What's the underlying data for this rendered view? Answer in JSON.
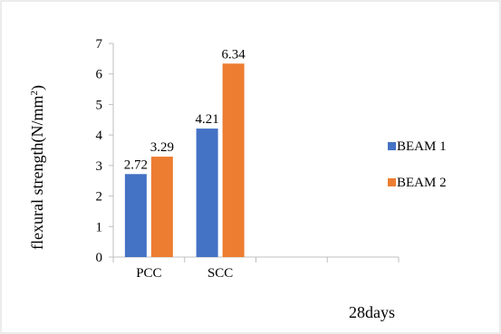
{
  "chart_data": {
    "type": "bar",
    "categories": [
      "PCC",
      "SCC",
      "",
      ""
    ],
    "series": [
      {
        "name": "BEAM 1",
        "values": [
          2.72,
          4.21,
          null,
          null
        ],
        "color": "#4472C4"
      },
      {
        "name": "BEAM 2",
        "values": [
          3.29,
          6.34,
          null,
          null
        ],
        "color": "#ED7D31"
      }
    ],
    "data_labels": [
      [
        "2.72",
        "4.21"
      ],
      [
        "3.29",
        "6.34"
      ]
    ],
    "title": "",
    "xlabel": "28days",
    "ylabel_main": "flexural strength(N/mm",
    "ylabel_sup": "2",
    "ylabel_close": ")",
    "ylim": [
      0,
      7
    ],
    "yticks": [
      "0",
      "1",
      "2",
      "3",
      "4",
      "5",
      "6",
      "7"
    ],
    "grid": false,
    "legend_position": "right"
  }
}
